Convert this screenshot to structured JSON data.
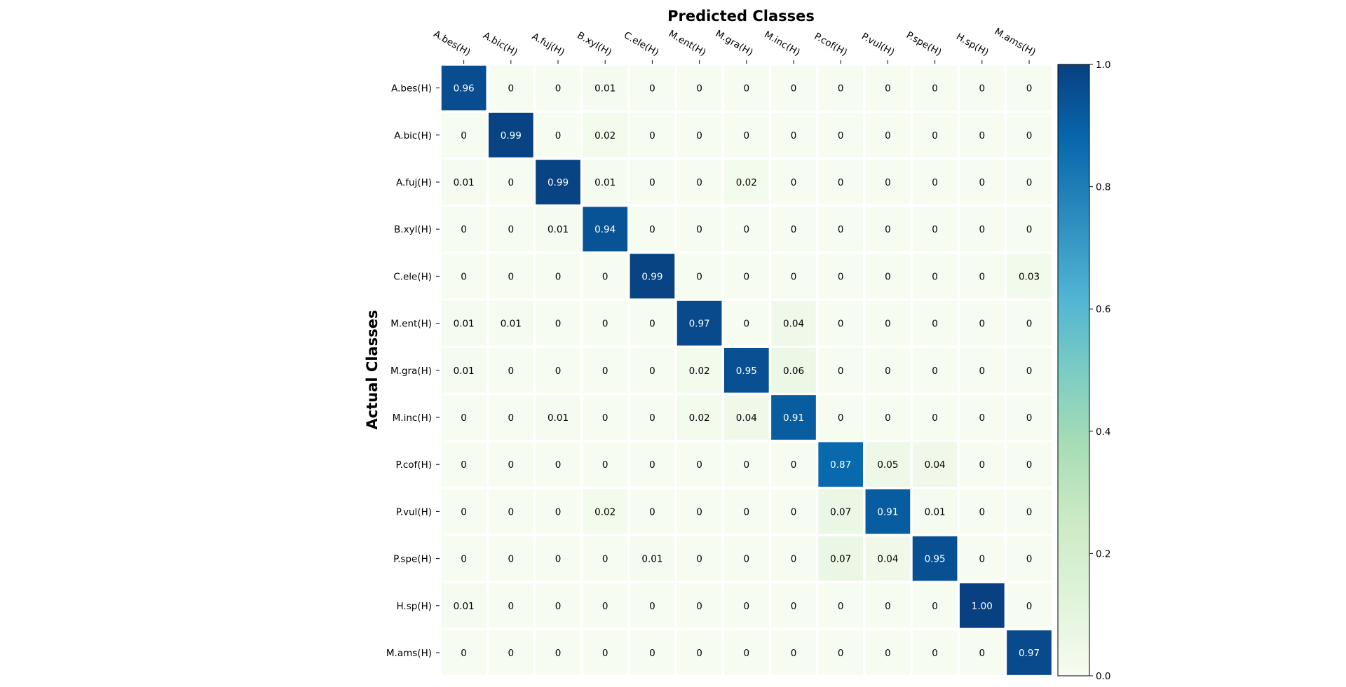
{
  "chart_data": {
    "type": "heatmap",
    "title": "Predicted Classes",
    "xlabel": "Predicted Classes",
    "ylabel": "Actual Classes",
    "x_categories": [
      "A.bes(H)",
      "A.bic(H)",
      "A.fuj(H)",
      "B.xyl(H)",
      "C.ele(H)",
      "M.ent(H)",
      "M.gra(H)",
      "M.inc(H)",
      "P.cof(H)",
      "P.vul(H)",
      "P.spe(H)",
      "H.sp(H)",
      "M.ams(H)"
    ],
    "y_categories": [
      "A.bes(H)",
      "A.bic(H)",
      "A.fuj(H)",
      "B.xyl(H)",
      "C.ele(H)",
      "M.ent(H)",
      "M.gra(H)",
      "M.inc(H)",
      "P.cof(H)",
      "P.vul(H)",
      "P.spe(H)",
      "H.sp(H)",
      "M.ams(H)"
    ],
    "values": [
      [
        0.96,
        0,
        0,
        0.01,
        0,
        0,
        0,
        0,
        0,
        0,
        0,
        0,
        0
      ],
      [
        0,
        0.99,
        0,
        0.02,
        0,
        0,
        0,
        0,
        0,
        0,
        0,
        0,
        0
      ],
      [
        0.01,
        0,
        0.99,
        0.01,
        0,
        0,
        0.02,
        0,
        0,
        0,
        0,
        0,
        0
      ],
      [
        0,
        0,
        0.01,
        0.94,
        0,
        0,
        0,
        0,
        0,
        0,
        0,
        0,
        0
      ],
      [
        0,
        0,
        0,
        0,
        0.99,
        0,
        0,
        0,
        0,
        0,
        0,
        0,
        0.03
      ],
      [
        0.01,
        0.01,
        0,
        0,
        0,
        0.97,
        0,
        0.04,
        0,
        0,
        0,
        0,
        0
      ],
      [
        0.01,
        0,
        0,
        0,
        0,
        0.02,
        0.95,
        0.06,
        0,
        0,
        0,
        0,
        0
      ],
      [
        0,
        0,
        0.01,
        0,
        0,
        0.02,
        0.04,
        0.91,
        0,
        0,
        0,
        0,
        0
      ],
      [
        0,
        0,
        0,
        0,
        0,
        0,
        0,
        0,
        0.87,
        0.05,
        0.04,
        0,
        0
      ],
      [
        0,
        0,
        0,
        0.02,
        0,
        0,
        0,
        0,
        0.07,
        0.91,
        0.01,
        0,
        0
      ],
      [
        0,
        0,
        0,
        0,
        0.01,
        0,
        0,
        0,
        0.07,
        0.04,
        0.95,
        0,
        0
      ],
      [
        0.01,
        0,
        0,
        0,
        0,
        0,
        0,
        0,
        0,
        0,
        0,
        1.0,
        0
      ],
      [
        0,
        0,
        0,
        0,
        0,
        0,
        0,
        0,
        0,
        0,
        0,
        0,
        0.97
      ]
    ],
    "value_labels": [
      [
        "0.96",
        "0",
        "0",
        "0.01",
        "0",
        "0",
        "0",
        "0",
        "0",
        "0",
        "0",
        "0",
        "0"
      ],
      [
        "0",
        "0.99",
        "0",
        "0.02",
        "0",
        "0",
        "0",
        "0",
        "0",
        "0",
        "0",
        "0",
        "0"
      ],
      [
        "0.01",
        "0",
        "0.99",
        "0.01",
        "0",
        "0",
        "0.02",
        "0",
        "0",
        "0",
        "0",
        "0",
        "0"
      ],
      [
        "0",
        "0",
        "0.01",
        "0.94",
        "0",
        "0",
        "0",
        "0",
        "0",
        "0",
        "0",
        "0",
        "0"
      ],
      [
        "0",
        "0",
        "0",
        "0",
        "0.99",
        "0",
        "0",
        "0",
        "0",
        "0",
        "0",
        "0",
        "0.03"
      ],
      [
        "0.01",
        "0.01",
        "0",
        "0",
        "0",
        "0.97",
        "0",
        "0.04",
        "0",
        "0",
        "0",
        "0",
        "0"
      ],
      [
        "0.01",
        "0",
        "0",
        "0",
        "0",
        "0.02",
        "0.95",
        "0.06",
        "0",
        "0",
        "0",
        "0",
        "0"
      ],
      [
        "0",
        "0",
        "0.01",
        "0",
        "0",
        "0.02",
        "0.04",
        "0.91",
        "0",
        "0",
        "0",
        "0",
        "0"
      ],
      [
        "0",
        "0",
        "0",
        "0",
        "0",
        "0",
        "0",
        "0",
        "0.87",
        "0.05",
        "0.04",
        "0",
        "0"
      ],
      [
        "0",
        "0",
        "0",
        "0.02",
        "0",
        "0",
        "0",
        "0",
        "0.07",
        "0.91",
        "0.01",
        "0",
        "0"
      ],
      [
        "0",
        "0",
        "0",
        "0",
        "0.01",
        "0",
        "0",
        "0",
        "0.07",
        "0.04",
        "0.95",
        "0",
        "0"
      ],
      [
        "0.01",
        "0",
        "0",
        "0",
        "0",
        "0",
        "0",
        "0",
        "0",
        "0",
        "0",
        "1.00",
        "0"
      ],
      [
        "0",
        "0",
        "0",
        "0",
        "0",
        "0",
        "0",
        "0",
        "0",
        "0",
        "0",
        "0",
        "0.97"
      ]
    ],
    "color_range": [
      0,
      1
    ],
    "colormap": "GnBu",
    "colorbar": {
      "ticks": [
        0.0,
        0.2,
        0.4,
        0.6,
        0.8,
        1.0
      ],
      "tick_labels": [
        "0.0",
        "0.2",
        "0.4",
        "0.6",
        "0.8",
        "1.0"
      ],
      "placement": "right"
    },
    "colormap_stops": [
      "#f7fcf0",
      "#e0f3db",
      "#ccebc5",
      "#a8ddb5",
      "#7bccc4",
      "#4eb3d3",
      "#2b8cbe",
      "#0868ac",
      "#084081"
    ],
    "grid": false,
    "x_tick_position": "top",
    "x_tick_rotation": "-30deg"
  }
}
